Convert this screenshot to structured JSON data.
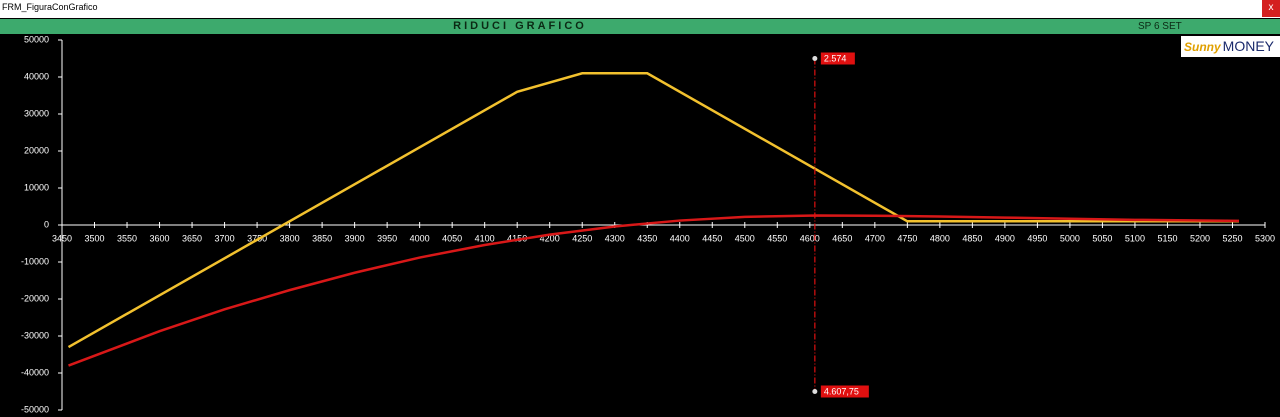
{
  "window": {
    "title": "FRM_FiguraConGrafico",
    "close": "x"
  },
  "toolbar": {
    "button": "RIDUCI GRAFICO",
    "label": "SP 6 SET"
  },
  "logo": {
    "brand": "Sunny",
    "name": "MONEY"
  },
  "chart_data": {
    "type": "line",
    "xlim": [
      3450,
      5300
    ],
    "xticks": [
      3450,
      3500,
      3550,
      3600,
      3650,
      3700,
      3750,
      3800,
      3850,
      3900,
      3950,
      4000,
      4050,
      4100,
      4150,
      4200,
      4250,
      4300,
      4350,
      4400,
      4450,
      4500,
      4550,
      4600,
      4650,
      4700,
      4750,
      4800,
      4850,
      4900,
      4950,
      5000,
      5050,
      5100,
      5150,
      5200,
      5250,
      5300
    ],
    "ylim": [
      -50000,
      50000
    ],
    "yticks": [
      -50000,
      -40000,
      -30000,
      -20000,
      -10000,
      0,
      10000,
      20000,
      30000,
      40000,
      50000
    ],
    "series": [
      {
        "color": "#f2c12e",
        "x": [
          3460,
          4150,
          4250,
          4350,
          4750,
          5260
        ],
        "values": [
          -33000,
          36000,
          41000,
          41000,
          1000,
          1000
        ]
      },
      {
        "color": "#d81818",
        "x": [
          3460,
          3600,
          3700,
          3800,
          3900,
          4000,
          4100,
          4200,
          4300,
          4400,
          4500,
          4610,
          4700,
          4800,
          4900,
          5000,
          5100,
          5200,
          5260
        ],
        "values": [
          -38000,
          -28700,
          -22800,
          -17600,
          -12900,
          -8800,
          -5400,
          -2600,
          -400,
          1200,
          2200,
          2574,
          2500,
          2300,
          2000,
          1700,
          1400,
          1200,
          1100
        ]
      }
    ],
    "cursor": {
      "x": 4607.75,
      "x_label": "4.607,75",
      "y_value": 2574,
      "y_label": "2.574",
      "color": "#e01010"
    }
  }
}
